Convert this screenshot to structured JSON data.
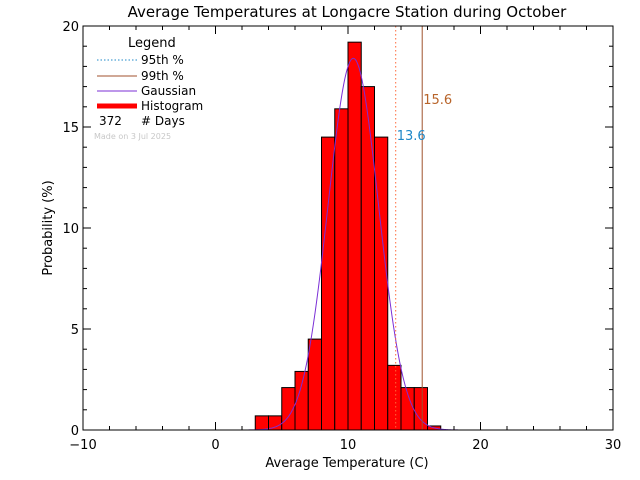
{
  "chart_data": {
    "type": "bar",
    "title": "Average Temperatures at Longacre Station during October",
    "xlabel": "Average Temperature (C)",
    "ylabel": "Probability (%)",
    "xlim": [
      -10,
      30
    ],
    "ylim": [
      0,
      20
    ],
    "xticks": [
      "−10",
      "0",
      "10",
      "20",
      "30"
    ],
    "yticks": [
      "0",
      "5",
      "10",
      "15",
      "20"
    ],
    "bin_width": 1,
    "bins": [
      {
        "x0": 3,
        "value": 0.7
      },
      {
        "x0": 4,
        "value": 0.7
      },
      {
        "x0": 5,
        "value": 2.1
      },
      {
        "x0": 6,
        "value": 2.9
      },
      {
        "x0": 7,
        "value": 4.5
      },
      {
        "x0": 8,
        "value": 14.5
      },
      {
        "x0": 9,
        "value": 15.9
      },
      {
        "x0": 10,
        "value": 19.2
      },
      {
        "x0": 11,
        "value": 17.0
      },
      {
        "x0": 12,
        "value": 14.5
      },
      {
        "x0": 13,
        "value": 3.2
      },
      {
        "x0": 14,
        "value": 2.1
      },
      {
        "x0": 15,
        "value": 2.1
      },
      {
        "x0": 16,
        "value": 0.2
      }
    ],
    "gaussian": {
      "mean": 10.4,
      "sd": 1.9,
      "peak": 18.4
    },
    "p95": {
      "value": 13.6,
      "label": "13.6",
      "color": "#ff6a3a",
      "label_color": "#1e88c8"
    },
    "p99": {
      "value": 15.6,
      "label": "15.6",
      "color": "#a0522d",
      "label_color": "#b8642a"
    },
    "colors": {
      "histogram": "#ff0000",
      "gaussian": "#7b2fd6",
      "axes": "#000000"
    },
    "legend": {
      "title": "Legend",
      "placement": "top-left",
      "entries": [
        "95th %",
        "99th %",
        "Gaussian",
        "Histogram"
      ],
      "days_count": "372",
      "days_label": "# Days"
    },
    "made_on": "Made on 3 Jul 2025"
  }
}
